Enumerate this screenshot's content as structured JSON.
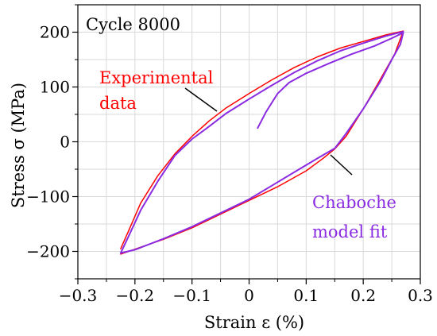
{
  "chart_data": {
    "type": "line",
    "xlabel": "Strain ε (%)",
    "ylabel": "Stress σ (MPa)",
    "xlim": [
      -0.3,
      0.3
    ],
    "ylim": [
      -250,
      250
    ],
    "x_ticks": [
      -0.3,
      -0.2,
      -0.1,
      0,
      0.1,
      0.2,
      0.3
    ],
    "y_ticks": [
      -200,
      -100,
      0,
      100,
      200
    ],
    "x_tick_labels": [
      "−0.3",
      "−0.2",
      "−0.1",
      "0",
      "0.1",
      "0.2",
      "0.3"
    ],
    "y_tick_labels": [
      "−200",
      "−100",
      "0",
      "100",
      "200"
    ],
    "grid": true,
    "annotations": {
      "cycle": "Cycle 8000",
      "experimental_line1": "Experimental",
      "experimental_line2": "data",
      "model_line1": "Chaboche",
      "model_line2": "model fit"
    },
    "colors": {
      "experimental": "#ff0000",
      "model": "#8a2be2",
      "grid": "#d9d9d9",
      "axis": "#000000"
    },
    "series": [
      {
        "role": "experimental",
        "x": [
          -0.225,
          -0.21,
          -0.19,
          -0.16,
          -0.13,
          -0.1,
          -0.07,
          -0.04,
          0.0,
          0.04,
          0.08,
          0.12,
          0.16,
          0.2,
          0.24,
          0.27,
          0.255,
          0.225,
          0.2,
          0.17,
          0.15,
          0.13,
          0.1,
          0.05,
          0.0,
          -0.05,
          -0.1,
          -0.15,
          -0.2,
          -0.225
        ],
        "y": [
          -195,
          -160,
          -112,
          -62,
          -22,
          10,
          38,
          62,
          88,
          113,
          136,
          155,
          171,
          183,
          195,
          202,
          160,
          105,
          60,
          10,
          -13,
          -30,
          -53,
          -82,
          -107,
          -132,
          -157,
          -178,
          -196,
          -205
        ]
      },
      {
        "role": "model",
        "x": [
          0.015,
          0.03,
          0.05,
          0.07,
          0.1,
          0.14,
          0.18,
          0.22,
          0.25,
          0.27,
          0.265,
          0.25,
          0.23,
          0.2,
          0.17,
          0.15,
          0.12,
          0.08,
          0.04,
          0.0,
          -0.05,
          -0.1,
          -0.15,
          -0.2,
          -0.225,
          -0.21,
          -0.19,
          -0.16,
          -0.13,
          -0.1,
          -0.07,
          -0.04,
          0.0,
          0.04,
          0.08,
          0.12,
          0.16,
          0.2,
          0.24,
          0.27
        ],
        "y": [
          25,
          55,
          88,
          108,
          125,
          143,
          160,
          175,
          189,
          199,
          178,
          150,
          110,
          60,
          15,
          -12,
          -30,
          -55,
          -80,
          -105,
          -130,
          -155,
          -177,
          -197,
          -203,
          -170,
          -125,
          -72,
          -25,
          5,
          28,
          52,
          78,
          103,
          127,
          148,
          166,
          180,
          193,
          201
        ]
      }
    ]
  }
}
